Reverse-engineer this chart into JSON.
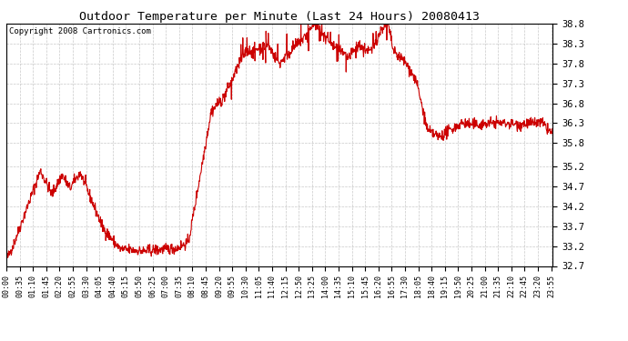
{
  "title": "Outdoor Temperature per Minute (Last 24 Hours) 20080413",
  "copyright_text": "Copyright 2008 Cartronics.com",
  "line_color": "#cc0000",
  "bg_color": "#ffffff",
  "plot_bg_color": "#ffffff",
  "grid_color": "#bbbbbb",
  "ylim": [
    32.7,
    38.8
  ],
  "yticks": [
    32.7,
    33.2,
    33.7,
    34.2,
    34.7,
    35.2,
    35.8,
    36.3,
    36.8,
    37.3,
    37.8,
    38.3,
    38.8
  ],
  "line_width": 0.8,
  "figsize": [
    6.9,
    3.75
  ],
  "dpi": 100,
  "tick_interval_minutes": 35
}
